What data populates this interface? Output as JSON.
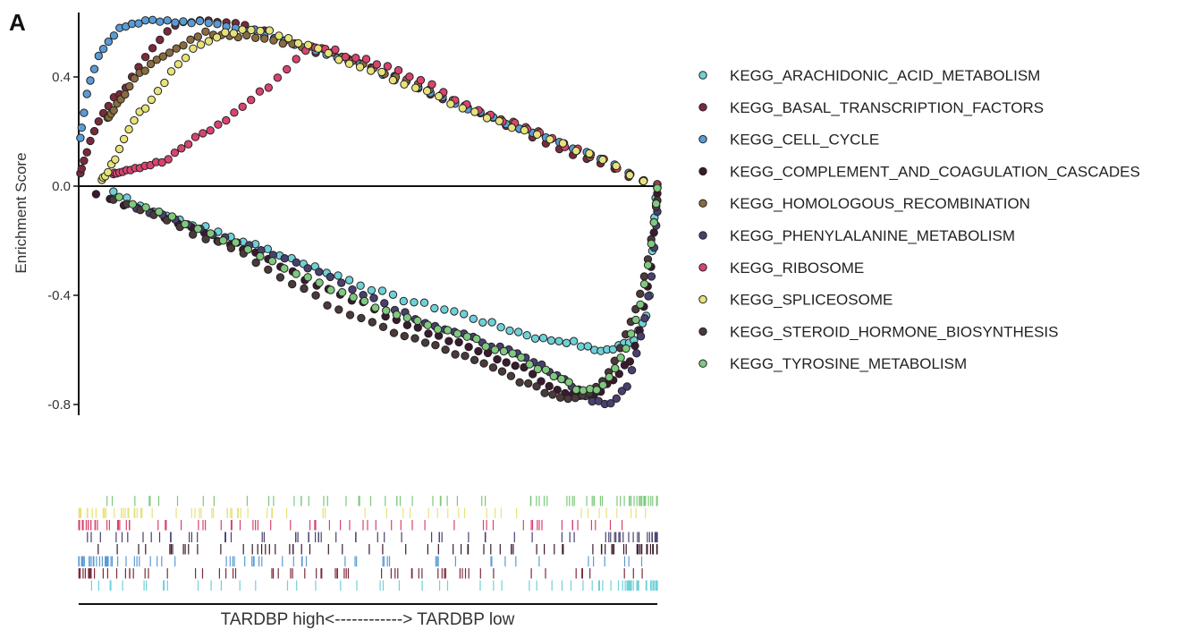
{
  "panel_label": "A",
  "chart_data": {
    "type": "scatter",
    "ylabel": "Enrichment Score",
    "xlabel": "TARDBP high<------------> TARDBP low",
    "ylim": [
      -0.83,
      0.64
    ],
    "yticks": [
      0.4,
      0.0,
      -0.4,
      -0.8
    ],
    "ytick_labels": [
      "0.4",
      "0.0",
      "-0.4",
      "-0.8"
    ],
    "x_range": [
      0,
      1
    ],
    "legend_position": "right",
    "series": [
      {
        "name": "KEGG_ARACHIDONIC_ACID_METABOLISM",
        "color": "#6fd1d8",
        "direction": "neg",
        "x": [
          0.06,
          0.14,
          0.23,
          0.35,
          0.45,
          0.55,
          0.65,
          0.72,
          0.8,
          0.85,
          0.89,
          0.92,
          0.96,
          0.985,
          0.997
        ],
        "y": [
          -0.02,
          -0.1,
          -0.16,
          -0.25,
          -0.33,
          -0.41,
          -0.46,
          -0.51,
          -0.56,
          -0.57,
          -0.6,
          -0.6,
          -0.56,
          -0.45,
          -0.05
        ]
      },
      {
        "name": "KEGG_BASAL_TRANSCRIPTION_FACTORS",
        "color": "#7a2a3c",
        "direction": "pos",
        "x": [
          0.003,
          0.01,
          0.02,
          0.03,
          0.045,
          0.06,
          0.08,
          0.1,
          0.12,
          0.14,
          0.16,
          0.18,
          0.2,
          0.22,
          0.26,
          0.3,
          0.35,
          0.4,
          0.5,
          0.6,
          0.7,
          0.8,
          0.9,
          1.0
        ],
        "y": [
          0.05,
          0.1,
          0.16,
          0.22,
          0.28,
          0.32,
          0.36,
          0.42,
          0.48,
          0.53,
          0.58,
          0.6,
          0.61,
          0.61,
          0.6,
          0.58,
          0.54,
          0.5,
          0.44,
          0.35,
          0.26,
          0.17,
          0.08,
          0.0
        ]
      },
      {
        "name": "KEGG_CELL_CYCLE",
        "color": "#5b9bd5",
        "direction": "pos",
        "x": [
          0.003,
          0.008,
          0.013,
          0.02,
          0.03,
          0.04,
          0.05,
          0.065,
          0.08,
          0.1,
          0.12,
          0.14,
          0.16,
          0.2,
          0.25,
          0.3,
          0.35,
          0.4,
          0.45,
          0.5,
          0.55,
          0.6,
          0.65,
          0.7,
          0.75,
          0.8,
          0.85,
          0.9,
          0.95,
          1.0
        ],
        "y": [
          0.18,
          0.26,
          0.33,
          0.39,
          0.45,
          0.5,
          0.53,
          0.57,
          0.59,
          0.6,
          0.61,
          0.61,
          0.6,
          0.6,
          0.59,
          0.57,
          0.54,
          0.5,
          0.47,
          0.43,
          0.39,
          0.35,
          0.3,
          0.26,
          0.22,
          0.18,
          0.14,
          0.1,
          0.05,
          0.0
        ]
      },
      {
        "name": "KEGG_COMPLEMENT_AND_COAGULATION_CASCADES",
        "color": "#3a1a2e",
        "direction": "neg",
        "x": [
          0.03,
          0.08,
          0.14,
          0.2,
          0.27,
          0.34,
          0.4,
          0.47,
          0.54,
          0.62,
          0.7,
          0.77,
          0.83,
          0.87,
          0.9,
          0.93,
          0.955,
          0.97,
          0.98,
          0.99,
          0.995,
          1.0
        ],
        "y": [
          -0.03,
          -0.07,
          -0.11,
          -0.16,
          -0.22,
          -0.28,
          -0.35,
          -0.41,
          -0.48,
          -0.55,
          -0.61,
          -0.67,
          -0.75,
          -0.77,
          -0.75,
          -0.7,
          -0.63,
          -0.52,
          -0.4,
          -0.28,
          -0.15,
          -0.02
        ]
      },
      {
        "name": "KEGG_HOMOLOGOUS_RECOMBINATION",
        "color": "#8a6b3e",
        "direction": "pos",
        "x": [
          0.05,
          0.1,
          0.16,
          0.22,
          0.28,
          0.34,
          0.4,
          0.45,
          0.5,
          0.55,
          0.6,
          0.65,
          0.7,
          0.75,
          0.8,
          0.85,
          0.9,
          0.95,
          1.0
        ],
        "y": [
          0.25,
          0.4,
          0.5,
          0.56,
          0.55,
          0.53,
          0.51,
          0.48,
          0.44,
          0.4,
          0.36,
          0.31,
          0.27,
          0.23,
          0.19,
          0.14,
          0.1,
          0.05,
          0.0
        ]
      },
      {
        "name": "KEGG_PHENYLALANINE_METABOLISM",
        "color": "#4a4070",
        "direction": "neg",
        "x": [
          0.1,
          0.2,
          0.3,
          0.4,
          0.5,
          0.58,
          0.64,
          0.7,
          0.76,
          0.82,
          0.86,
          0.89,
          0.91,
          0.93,
          0.95,
          0.96,
          0.975,
          0.99,
          1.0
        ],
        "y": [
          -0.08,
          -0.15,
          -0.22,
          -0.3,
          -0.4,
          -0.48,
          -0.53,
          -0.57,
          -0.62,
          -0.68,
          -0.74,
          -0.79,
          -0.8,
          -0.78,
          -0.72,
          -0.64,
          -0.52,
          -0.33,
          -0.1
        ]
      },
      {
        "name": "KEGG_RIBOSOME",
        "color": "#d9436f",
        "direction": "pos",
        "x": [
          0.06,
          0.1,
          0.15,
          0.18,
          0.21,
          0.24,
          0.27,
          0.3,
          0.33,
          0.36,
          0.38,
          0.4,
          0.42,
          0.44,
          0.46,
          0.48,
          0.5,
          0.52,
          0.55,
          0.58,
          0.62,
          0.66,
          0.7,
          0.75,
          0.8,
          0.85,
          0.9,
          0.95,
          1.0
        ],
        "y": [
          0.05,
          0.07,
          0.09,
          0.14,
          0.19,
          0.22,
          0.27,
          0.32,
          0.37,
          0.43,
          0.48,
          0.5,
          0.51,
          0.5,
          0.48,
          0.47,
          0.46,
          0.45,
          0.43,
          0.4,
          0.36,
          0.31,
          0.27,
          0.23,
          0.19,
          0.14,
          0.1,
          0.05,
          0.0
        ]
      },
      {
        "name": "KEGG_SPLICEOSOME",
        "color": "#e7e27a",
        "direction": "pos",
        "x": [
          0.04,
          0.05,
          0.06,
          0.07,
          0.08,
          0.09,
          0.1,
          0.12,
          0.14,
          0.16,
          0.18,
          0.2,
          0.22,
          0.24,
          0.26,
          0.28,
          0.3,
          0.32,
          0.34,
          0.36,
          0.4,
          0.45,
          0.5,
          0.55,
          0.6,
          0.65,
          0.7,
          0.75,
          0.8,
          0.85,
          0.9,
          0.95,
          1.0
        ],
        "y": [
          0.02,
          0.05,
          0.09,
          0.13,
          0.18,
          0.22,
          0.26,
          0.3,
          0.36,
          0.42,
          0.47,
          0.5,
          0.53,
          0.55,
          0.56,
          0.57,
          0.57,
          0.57,
          0.56,
          0.55,
          0.51,
          0.47,
          0.43,
          0.39,
          0.35,
          0.3,
          0.26,
          0.22,
          0.18,
          0.14,
          0.1,
          0.05,
          0.0
        ]
      },
      {
        "name": "KEGG_STEROID_HORMONE_BIOSYNTHESIS",
        "color": "#4a3a3a",
        "direction": "neg",
        "x": [
          0.06,
          0.12,
          0.18,
          0.26,
          0.34,
          0.42,
          0.5,
          0.58,
          0.66,
          0.73,
          0.79,
          0.84,
          0.88,
          0.91,
          0.93,
          0.95,
          0.97,
          0.985,
          1.0
        ],
        "y": [
          -0.05,
          -0.1,
          -0.16,
          -0.22,
          -0.32,
          -0.42,
          -0.5,
          -0.56,
          -0.62,
          -0.68,
          -0.74,
          -0.78,
          -0.76,
          -0.7,
          -0.62,
          -0.52,
          -0.4,
          -0.25,
          -0.05
        ]
      },
      {
        "name": "KEGG_TYROSINE_METABOLISM",
        "color": "#7fc97f",
        "direction": "neg",
        "x": [
          0.07,
          0.14,
          0.21,
          0.28,
          0.36,
          0.44,
          0.52,
          0.6,
          0.68,
          0.75,
          0.81,
          0.86,
          0.89,
          0.92,
          0.945,
          0.965,
          0.98,
          0.99,
          0.997,
          1.0
        ],
        "y": [
          -0.04,
          -0.1,
          -0.16,
          -0.22,
          -0.3,
          -0.38,
          -0.45,
          -0.51,
          -0.56,
          -0.62,
          -0.68,
          -0.74,
          -0.75,
          -0.7,
          -0.6,
          -0.48,
          -0.34,
          -0.2,
          -0.1,
          0.0
        ]
      }
    ],
    "rug": {
      "row_series_order": [
        9,
        7,
        6,
        5,
        3,
        2,
        1,
        0
      ]
    }
  }
}
